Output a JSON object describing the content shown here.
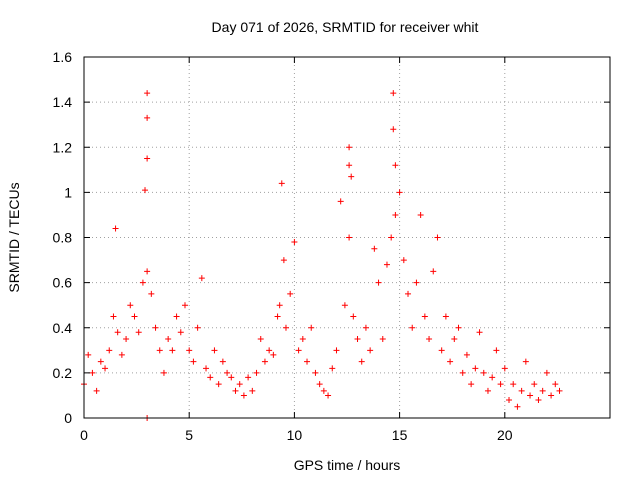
{
  "chart_data": {
    "type": "scatter",
    "title": "Day 071 of 2026, SRMTID for receiver whit",
    "xlabel": "GPS time / hours",
    "ylabel": "SRMTID / TECUs",
    "xlim": [
      0,
      25
    ],
    "ylim": [
      0,
      1.6
    ],
    "xticks": [
      0,
      5,
      10,
      15,
      20
    ],
    "xtick_labels": [
      "0",
      "5",
      "10",
      "15",
      "20"
    ],
    "yticks": [
      0,
      0.2,
      0.4,
      0.6,
      0.8,
      1.0,
      1.2,
      1.4,
      1.6
    ],
    "ytick_labels": [
      "0",
      "0.2",
      "0.4",
      "0.6",
      "0.8",
      "1",
      "1.2",
      "1.4",
      "1.6"
    ],
    "grid": true,
    "marker": "+",
    "colors": {
      "series": "#ff0000",
      "grid": "#a0a0a0",
      "axis": "#000000"
    },
    "series": [
      {
        "name": "SRMTID",
        "x": [
          0.0,
          0.2,
          0.4,
          0.6,
          0.8,
          1.0,
          1.2,
          1.4,
          1.5,
          1.6,
          1.8,
          2.0,
          2.2,
          2.4,
          2.6,
          2.8,
          2.9,
          3.0,
          3.0,
          3.0,
          3.0,
          3.0,
          3.2,
          3.4,
          3.6,
          3.8,
          4.0,
          4.2,
          4.4,
          4.6,
          4.8,
          5.0,
          5.2,
          5.4,
          5.6,
          5.8,
          6.0,
          6.2,
          6.4,
          6.6,
          6.8,
          7.0,
          7.2,
          7.4,
          7.6,
          7.8,
          8.0,
          8.2,
          8.4,
          8.6,
          8.8,
          9.0,
          9.2,
          9.3,
          9.4,
          9.5,
          9.6,
          9.8,
          10.0,
          10.2,
          10.4,
          10.6,
          10.8,
          11.0,
          11.2,
          11.4,
          11.6,
          11.8,
          12.0,
          12.2,
          12.4,
          12.6,
          12.6,
          12.6,
          12.7,
          12.8,
          13.0,
          13.2,
          13.4,
          13.6,
          13.8,
          14.0,
          14.2,
          14.4,
          14.6,
          14.7,
          14.7,
          14.8,
          14.8,
          15.0,
          15.2,
          15.4,
          15.6,
          15.8,
          16.0,
          16.2,
          16.4,
          16.6,
          16.8,
          17.0,
          17.2,
          17.4,
          17.6,
          17.8,
          18.0,
          18.2,
          18.4,
          18.6,
          18.8,
          19.0,
          19.2,
          19.4,
          19.6,
          19.8,
          20.0,
          20.2,
          20.4,
          20.6,
          20.8,
          21.0,
          21.2,
          21.4,
          21.6,
          21.8,
          22.0,
          22.2,
          22.4,
          22.6
        ],
        "y": [
          0.15,
          0.28,
          0.2,
          0.12,
          0.25,
          0.22,
          0.3,
          0.45,
          0.84,
          0.38,
          0.28,
          0.35,
          0.5,
          0.45,
          0.38,
          0.6,
          1.01,
          1.44,
          1.33,
          1.15,
          0.65,
          0.0,
          0.55,
          0.4,
          0.3,
          0.2,
          0.35,
          0.3,
          0.45,
          0.38,
          0.5,
          0.3,
          0.25,
          0.4,
          0.62,
          0.22,
          0.18,
          0.3,
          0.15,
          0.25,
          0.2,
          0.18,
          0.12,
          0.15,
          0.1,
          0.18,
          0.12,
          0.2,
          0.35,
          0.25,
          0.3,
          0.28,
          0.45,
          0.5,
          1.04,
          0.7,
          0.4,
          0.55,
          0.78,
          0.3,
          0.35,
          0.25,
          0.4,
          0.2,
          0.15,
          0.12,
          0.1,
          0.22,
          0.3,
          0.96,
          0.5,
          1.2,
          1.12,
          0.8,
          1.07,
          0.45,
          0.35,
          0.25,
          0.4,
          0.3,
          0.75,
          0.6,
          0.35,
          0.68,
          0.8,
          1.44,
          1.28,
          1.12,
          0.9,
          1.0,
          0.7,
          0.55,
          0.4,
          0.6,
          0.9,
          0.45,
          0.35,
          0.65,
          0.8,
          0.3,
          0.45,
          0.25,
          0.35,
          0.4,
          0.2,
          0.28,
          0.15,
          0.22,
          0.38,
          0.2,
          0.12,
          0.18,
          0.3,
          0.15,
          0.22,
          0.08,
          0.15,
          0.05,
          0.12,
          0.25,
          0.1,
          0.15,
          0.08,
          0.12,
          0.2,
          0.1,
          0.15,
          0.12
        ]
      }
    ]
  }
}
